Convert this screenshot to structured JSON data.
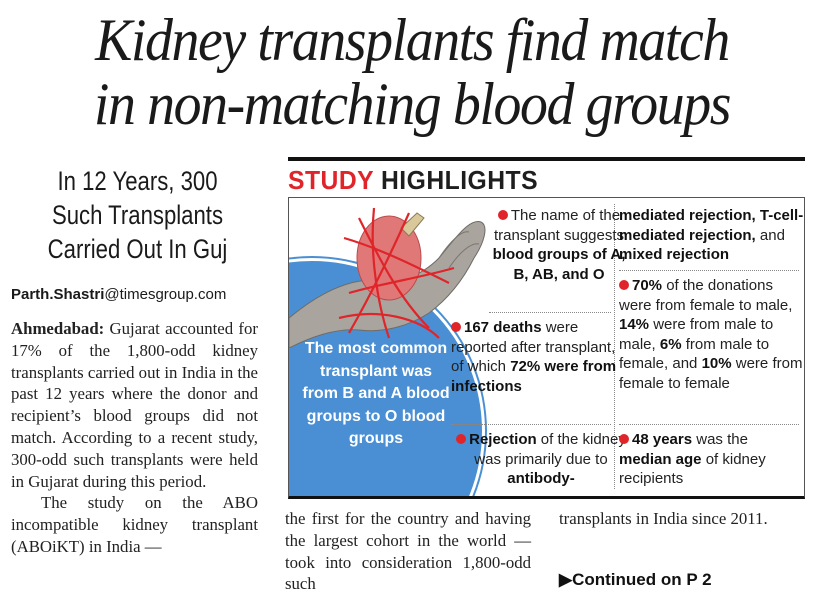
{
  "headline": {
    "line1": "Kidney transplants find match",
    "line2": "in non-matching blood groups"
  },
  "subhead": {
    "line1": "In 12 Years, 300",
    "line2": "Such Transplants",
    "line3": "Carried Out In Guj"
  },
  "byline": {
    "name": "Parth.Shastri",
    "domain": "@timesgroup.com"
  },
  "article": {
    "dateline": "Ahmedabad:",
    "para1": " Gujarat accounted for 17% of the 1,800-odd kidney transplants carried out in India in the past 12 years where the donor and recipient’s blood groups did not match. According to a recent study, 300-odd such transplants were held in Gujarat during this period.",
    "para2a": "The study on the ABO incompatible kidney transplant (ABOiKT) in India —",
    "para2b": "the first for the country and having the largest cohort in the world — took into consideration 1,800-odd such",
    "para2c": "transplants in India since 2011.",
    "continued": "▶Continued on P 2"
  },
  "highlights": {
    "title_red": "STUDY",
    "title_dark": " HIGHLIGHTS",
    "accent_color": "#e0252a",
    "circle_color": "#4a8fd4",
    "illustration": "kidney-in-hand-bound-with-red-strings",
    "blue_text": "The most common transplant was from B and A blood groups to O blood groups",
    "item1": {
      "t1": "The name of the transplant suggests ",
      "b1": "blood groups of A, B, AB, and O"
    },
    "item2": {
      "b1": "167 deaths",
      "t1": " were reported after transplant, of which ",
      "b2": "72% were from infections"
    },
    "item3": {
      "b1": "Rejection",
      "t1": " of the kidney was primarily due to ",
      "b2": "antibody-"
    },
    "item4": {
      "b1": "mediated rejection, T-cell-mediated rejection,",
      "t1": " and ",
      "b2": "mixed rejection"
    },
    "item5": {
      "b1": "70%",
      "t1": " of the donations were from female to male, ",
      "b2": "14%",
      "t2": " were from male to male, ",
      "b3": "6%",
      "t3": " from male to female, and ",
      "b4": "10%",
      "t4": " were from female to female"
    },
    "item6": {
      "b1": "48 years",
      "t1": " was the ",
      "b2": "median age",
      "t2": " of kidney recipients"
    }
  }
}
